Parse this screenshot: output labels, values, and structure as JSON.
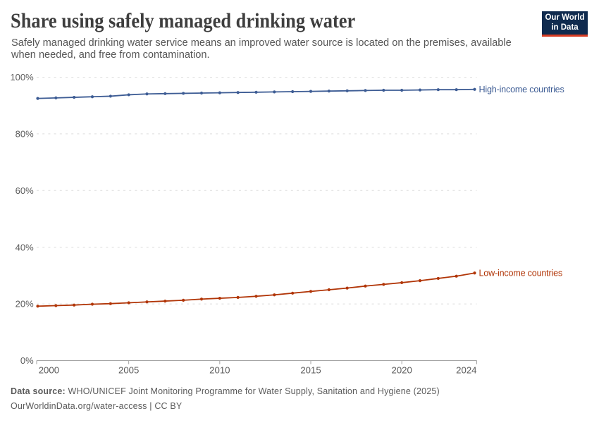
{
  "header": {
    "title": "Share using safely managed drinking water",
    "subtitle": "Safely managed drinking water service means an improved water source is located on the premises, available when needed, and free from contamination.",
    "logo": {
      "line1": "Our World",
      "line2": "in Data",
      "bg_color": "#0f2a4e",
      "accent_color": "#d73c23"
    }
  },
  "chart_data": {
    "type": "line",
    "title": "Share using safely managed drinking water",
    "xlabel": "",
    "ylabel": "",
    "ylim": [
      0,
      100
    ],
    "yticks": [
      0,
      20,
      40,
      60,
      80,
      100
    ],
    "ytick_suffix": "%",
    "xticks": [
      2000,
      2005,
      2010,
      2015,
      2020,
      2024
    ],
    "grid": "horizontal-dashed",
    "legend_position": "end-of-line-labels",
    "x": [
      2000,
      2001,
      2002,
      2003,
      2004,
      2005,
      2006,
      2007,
      2008,
      2009,
      2010,
      2011,
      2012,
      2013,
      2014,
      2015,
      2016,
      2017,
      2018,
      2019,
      2020,
      2021,
      2022,
      2023,
      2024
    ],
    "series": [
      {
        "name": "High-income countries",
        "color": "#3d5c94",
        "values": [
          92.5,
          92.7,
          92.9,
          93.1,
          93.3,
          93.8,
          94.1,
          94.2,
          94.3,
          94.4,
          94.5,
          94.6,
          94.7,
          94.8,
          94.9,
          95.0,
          95.1,
          95.2,
          95.3,
          95.4,
          95.4,
          95.5,
          95.6,
          95.6,
          95.7
        ]
      },
      {
        "name": "Low-income countries",
        "color": "#b13507",
        "values": [
          19.2,
          19.4,
          19.6,
          19.9,
          20.1,
          20.4,
          20.7,
          21.0,
          21.3,
          21.7,
          22.0,
          22.3,
          22.7,
          23.2,
          23.8,
          24.4,
          25.0,
          25.6,
          26.3,
          26.9,
          27.5,
          28.2,
          29.0,
          29.8,
          30.9
        ]
      }
    ]
  },
  "footer": {
    "sources_label": "Data source:",
    "sources_text": "WHO/UNICEF Joint Monitoring Programme for Water Supply, Sanitation and Hygiene (2025)",
    "note_text": "OurWorldinData.org/water-access | CC BY"
  },
  "style": {
    "grid_color": "#dcdcdc",
    "axis_color": "#a1a1a1",
    "tick_label_color": "#5b5b5b"
  }
}
